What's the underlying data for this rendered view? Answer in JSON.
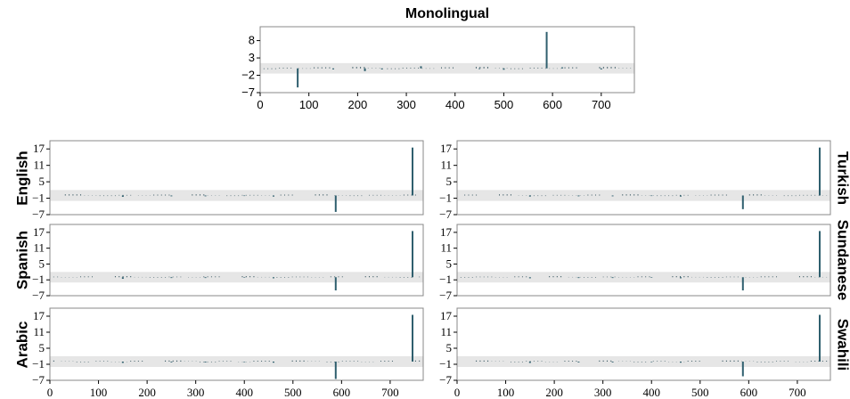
{
  "chart_data": [
    {
      "type": "bar",
      "title": "Monolingual",
      "xlim": [
        0,
        768
      ],
      "ylim": [
        -7,
        12
      ],
      "yticks": [
        -7,
        -2,
        3,
        8
      ],
      "xticks": [
        0,
        100,
        200,
        300,
        400,
        500,
        600,
        700
      ],
      "band": [
        -1.5,
        1.5
      ],
      "series": [
        {
          "x": [
            77,
            588,
            215,
            330,
            150,
            500,
            620,
            250,
            450,
            700
          ],
          "values": [
            -5.5,
            10.5,
            -0.8,
            0.6,
            -0.3,
            -0.4,
            0.3,
            -0.3,
            -0.2,
            -0.3
          ]
        }
      ]
    },
    {
      "type": "bar",
      "label": "English",
      "xlim": [
        0,
        768
      ],
      "ylim": [
        -7,
        20
      ],
      "yticks": [
        -7,
        -1,
        5,
        11,
        17
      ],
      "band": [
        -2,
        2
      ],
      "series": [
        {
          "x": [
            588,
            746,
            150,
            320,
            460,
            250,
            400
          ],
          "values": [
            -6,
            17.5,
            -0.5,
            -0.3,
            -0.4,
            -0.3,
            -0.2
          ]
        }
      ]
    },
    {
      "type": "bar",
      "label": "Spanish",
      "xlim": [
        0,
        768
      ],
      "ylim": [
        -7,
        20
      ],
      "yticks": [
        -7,
        -1,
        5,
        11,
        17
      ],
      "band": [
        -2,
        2
      ],
      "series": [
        {
          "x": [
            588,
            746,
            150,
            320,
            460,
            250,
            400
          ],
          "values": [
            -5,
            17.5,
            -0.6,
            -0.3,
            -0.4,
            -0.3,
            -0.2
          ]
        }
      ]
    },
    {
      "type": "bar",
      "label": "Arabic",
      "xlim": [
        0,
        768
      ],
      "ylim": [
        -7,
        20
      ],
      "yticks": [
        -7,
        -1,
        5,
        11,
        17
      ],
      "xticks": [
        0,
        100,
        200,
        300,
        400,
        500,
        600,
        700
      ],
      "band": [
        -2,
        2
      ],
      "series": [
        {
          "x": [
            588,
            746,
            150,
            320,
            460,
            250,
            400
          ],
          "values": [
            -6.5,
            17.5,
            -0.5,
            -0.3,
            -0.4,
            -0.3,
            -0.2
          ]
        }
      ]
    },
    {
      "type": "bar",
      "label": "Turkish",
      "xlim": [
        0,
        768
      ],
      "ylim": [
        -7,
        20
      ],
      "yticks": [
        -7,
        -1,
        5,
        11,
        17
      ],
      "band": [
        -2,
        2
      ],
      "series": [
        {
          "x": [
            588,
            746,
            150,
            320,
            460,
            250,
            400
          ],
          "values": [
            -5,
            17.5,
            -0.4,
            -0.3,
            -0.4,
            -0.3,
            -0.2
          ]
        }
      ]
    },
    {
      "type": "bar",
      "label": "Sundanese",
      "xlim": [
        0,
        768
      ],
      "ylim": [
        -7,
        20
      ],
      "yticks": [
        -7,
        -1,
        5,
        11,
        17
      ],
      "band": [
        -2,
        2
      ],
      "series": [
        {
          "x": [
            588,
            746,
            150,
            320,
            460,
            250,
            400
          ],
          "values": [
            -5,
            17.5,
            -0.4,
            -0.3,
            -0.4,
            -0.3,
            -0.2
          ]
        }
      ]
    },
    {
      "type": "bar",
      "label": "Swahili",
      "xlim": [
        0,
        768
      ],
      "ylim": [
        -7,
        20
      ],
      "yticks": [
        -7,
        -1,
        5,
        11,
        17
      ],
      "xticks": [
        0,
        100,
        200,
        300,
        400,
        500,
        600,
        700
      ],
      "band": [
        -2,
        2
      ],
      "series": [
        {
          "x": [
            588,
            746,
            150,
            320,
            460,
            250,
            400
          ],
          "values": [
            -5.5,
            17.5,
            -0.5,
            -0.3,
            -0.4,
            -0.3,
            -0.2
          ]
        }
      ]
    }
  ],
  "colors": {
    "bar": "#2f5f6e",
    "band": "#e6e6e6",
    "frame": "#888888",
    "noise": "#2f4f5a"
  }
}
